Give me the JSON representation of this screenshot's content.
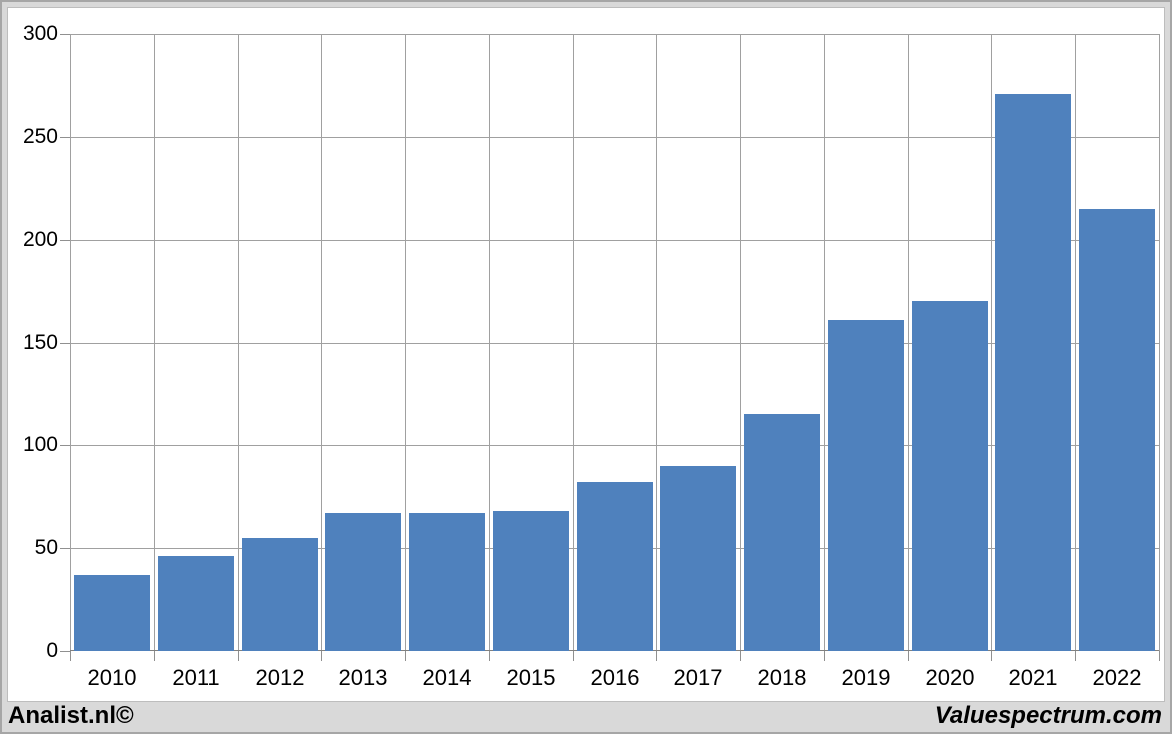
{
  "footer": {
    "left": "Analist.nl©",
    "right": "Valuespectrum.com"
  },
  "colors": {
    "bar": "#4f81bd",
    "gridline": "#a0a0a0",
    "axis": "#808080",
    "page_background": "#d9d9d9",
    "panel_background": "#ffffff",
    "frame_border": "#a6a6a6",
    "text": "#000000"
  },
  "chart_data": {
    "type": "bar",
    "title": "",
    "xlabel": "",
    "ylabel": "",
    "categories": [
      "2010",
      "2011",
      "2012",
      "2013",
      "2014",
      "2015",
      "2016",
      "2017",
      "2018",
      "2019",
      "2020",
      "2021",
      "2022"
    ],
    "values": [
      37,
      46,
      55,
      67,
      67,
      68,
      82,
      90,
      115,
      161,
      170,
      271,
      215
    ],
    "ylim": [
      0,
      300
    ],
    "y_ticks": [
      0,
      50,
      100,
      150,
      200,
      250,
      300
    ],
    "grid": true,
    "legend": false,
    "bar_color": "#4f81bd"
  }
}
